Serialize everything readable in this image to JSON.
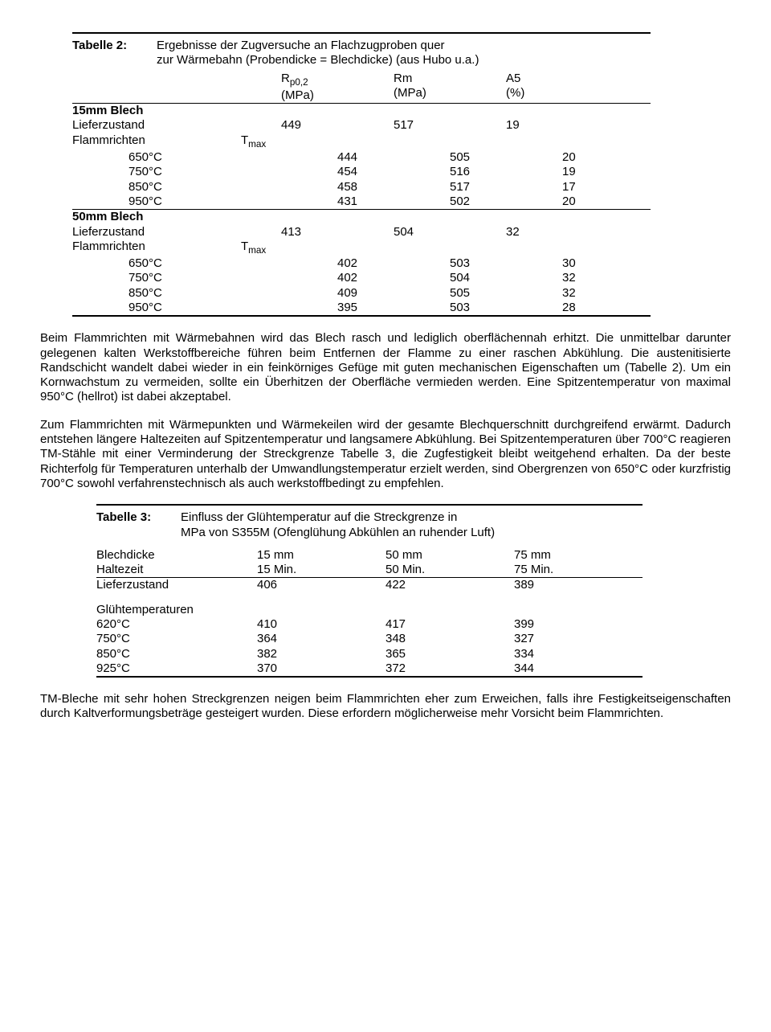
{
  "table2": {
    "caption_label": "Tabelle 2:",
    "caption_text1": "Ergebnisse der Zugversuche an Flachzugproben quer",
    "caption_text2": "zur Wärmebahn (Probendicke = Blechdicke) (aus Hubo u.a.)",
    "hdr_rp_1": "R",
    "hdr_rp_2": "p0,2",
    "hdr_rp_unit": "(MPa)",
    "hdr_rm": "Rm",
    "hdr_rm_unit": "(MPa)",
    "hdr_a5": "A5",
    "hdr_a5_unit": "(%)",
    "sec1_title": "15mm Blech",
    "sec1_lief": "Lieferzustand",
    "sec1_lief_v": [
      "449",
      "517",
      "19"
    ],
    "sec1_flam": "Flammrichten",
    "tmax1": "T",
    "tmax2": "max",
    "sec1_rows": [
      {
        "t": "650°C",
        "v": [
          "444",
          "505",
          "20"
        ]
      },
      {
        "t": "750°C",
        "v": [
          "454",
          "516",
          "19"
        ]
      },
      {
        "t": "850°C",
        "v": [
          "458",
          "517",
          "17"
        ]
      },
      {
        "t": "950°C",
        "v": [
          "431",
          "502",
          "20"
        ]
      }
    ],
    "sec2_title": "50mm Blech",
    "sec2_lief": "Lieferzustand",
    "sec2_lief_v": [
      "413",
      "504",
      "32"
    ],
    "sec2_flam": "Flammrichten",
    "sec2_rows": [
      {
        "t": "650°C",
        "v": [
          "402",
          "503",
          "30"
        ]
      },
      {
        "t": "750°C",
        "v": [
          "402",
          "504",
          "32"
        ]
      },
      {
        "t": "850°C",
        "v": [
          "409",
          "505",
          "32"
        ]
      },
      {
        "t": "950°C",
        "v": [
          "395",
          "503",
          "28"
        ]
      }
    ]
  },
  "para1": "Beim Flammrichten mit Wärmebahnen wird das Blech rasch und lediglich oberflächennah erhitzt. Die unmittelbar darunter gelegenen kalten Werkstoffbereiche führen beim Entfernen der Flamme zu einer raschen Abkühlung. Die austenitisierte Randschicht wandelt dabei wieder in ein feinkörniges Gefüge mit guten mechanischen Eigenschaften um (Tabelle 2). Um ein Kornwachstum zu vermeiden, sollte ein Überhitzen der Oberfläche vermieden werden. Eine Spitzentemperatur von maximal 950°C (hellrot) ist dabei akzeptabel.",
  "para2": "Zum Flammrichten mit Wärmepunkten und Wärmekeilen wird der gesamte Blechquerschnitt durchgreifend erwärmt. Dadurch entstehen längere Haltezeiten auf Spitzentemperatur und langsamere Abkühlung. Bei Spitzentemperaturen über 700°C reagieren TM-Stähle mit einer Verminderung der Streckgrenze Tabelle 3, die Zugfestigkeit bleibt weitgehend erhalten. Da der beste Richterfolg für Temperaturen unterhalb der Umwandlungstemperatur erzielt werden, sind Obergrenzen von 650°C oder kurzfristig 700°C sowohl verfahrenstechnisch als auch werkstoffbedingt zu empfehlen.",
  "table3": {
    "caption_label": "Tabelle 3:",
    "caption_text1": "Einfluss der Glühtemperatur auf die Streckgrenze in",
    "caption_text2": "MPa von S355M (Ofenglühung Abkühlen an ruhender Luft)",
    "hdr_bd": "Blechdicke",
    "hdr_hz": "Haltezeit",
    "hdr_cols_mm": [
      "15 mm",
      "50 mm",
      "75 mm"
    ],
    "hdr_cols_min": [
      "15 Min.",
      "50 Min.",
      "75 Min."
    ],
    "lief": "Lieferzustand",
    "lief_v": [
      "406",
      "422",
      "389"
    ],
    "gt_title": "Glühtemperaturen",
    "rows": [
      {
        "t": "620°C",
        "v": [
          "410",
          "417",
          "399"
        ]
      },
      {
        "t": "750°C",
        "v": [
          "364",
          "348",
          "327"
        ]
      },
      {
        "t": "850°C",
        "v": [
          "382",
          "365",
          "334"
        ]
      },
      {
        "t": "925°C",
        "v": [
          "370",
          "372",
          "344"
        ]
      }
    ]
  },
  "para3": "TM-Bleche mit sehr hohen Streckgrenzen neigen beim Flammrichten eher zum Erweichen, falls ihre Festigkeitseigenschaften durch Kaltverformungsbeträge gesteigert wurden. Diese erfordern möglicherweise mehr Vorsicht beim Flammrichten."
}
